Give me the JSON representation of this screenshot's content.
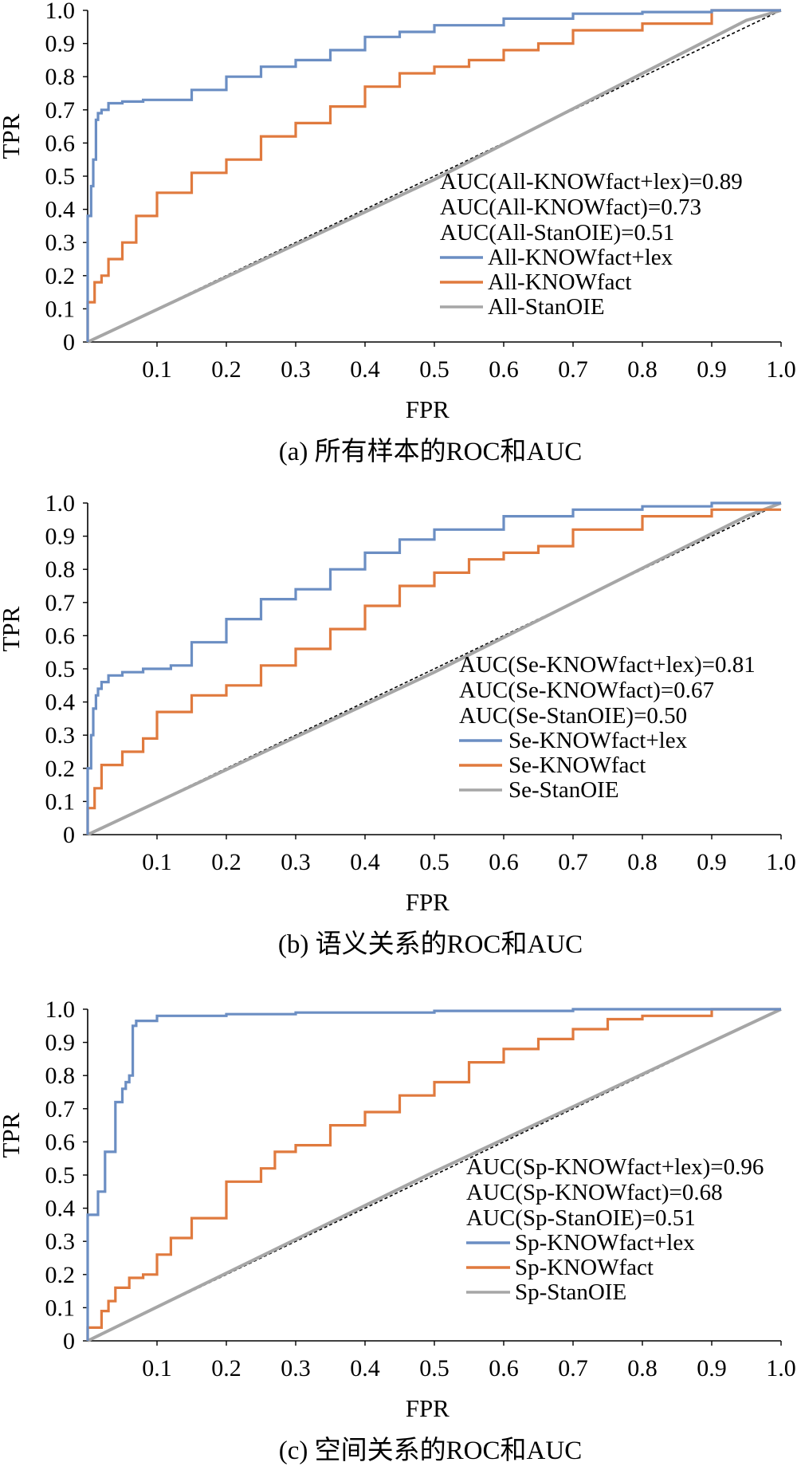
{
  "chart_data": [
    {
      "type": "line",
      "caption": "(a) 所有样本的ROC和AUC",
      "xlabel": "FPR",
      "ylabel": "TPR",
      "xlim": [
        0,
        1
      ],
      "ylim": [
        0,
        1
      ],
      "x_ticks": [
        "0.1",
        "0.2",
        "0.3",
        "0.4",
        "0.5",
        "0.6",
        "0.7",
        "0.8",
        "0.9",
        "1.0"
      ],
      "y_ticks": [
        "0",
        "0.1",
        "0.2",
        "0.3",
        "0.4",
        "0.5",
        "0.6",
        "0.7",
        "0.8",
        "0.9",
        "1.0"
      ],
      "grid": false,
      "legend_position": "right",
      "annotations": [
        "AUC(All-KNOWfact+lex)=0.89",
        "AUC(All-KNOWfact)=0.73",
        "AUC(All-StanOIE)=0.51"
      ],
      "diagonal": true,
      "series": [
        {
          "name": "All-KNOWfact+lex",
          "color": "#6b8ec3",
          "x": [
            0,
            0.005,
            0.008,
            0.012,
            0.015,
            0.02,
            0.03,
            0.05,
            0.08,
            0.15,
            0.2,
            0.25,
            0.3,
            0.35,
            0.4,
            0.45,
            0.5,
            0.6,
            0.7,
            0.8,
            0.9,
            1.0
          ],
          "y": [
            0,
            0.38,
            0.47,
            0.55,
            0.67,
            0.69,
            0.7,
            0.72,
            0.725,
            0.73,
            0.76,
            0.8,
            0.83,
            0.85,
            0.88,
            0.92,
            0.935,
            0.955,
            0.975,
            0.99,
            0.995,
            1.0
          ]
        },
        {
          "name": "All-KNOWfact",
          "color": "#e07a3e",
          "x": [
            0,
            0.01,
            0.02,
            0.03,
            0.05,
            0.07,
            0.1,
            0.15,
            0.2,
            0.25,
            0.3,
            0.35,
            0.4,
            0.45,
            0.5,
            0.55,
            0.6,
            0.65,
            0.7,
            0.8,
            0.9,
            1.0
          ],
          "y": [
            0,
            0.12,
            0.18,
            0.2,
            0.25,
            0.3,
            0.38,
            0.45,
            0.51,
            0.55,
            0.62,
            0.66,
            0.71,
            0.77,
            0.81,
            0.83,
            0.85,
            0.88,
            0.9,
            0.94,
            0.96,
            1.0
          ]
        },
        {
          "name": "All-StanOIE",
          "color": "#a6a6a6",
          "x": [
            0,
            0.5,
            0.95,
            1.0
          ],
          "y": [
            0,
            0.49,
            0.97,
            1.0
          ]
        }
      ]
    },
    {
      "type": "line",
      "caption": "(b) 语义关系的ROC和AUC",
      "xlabel": "FPR",
      "ylabel": "TPR",
      "xlim": [
        0,
        1
      ],
      "ylim": [
        0,
        1
      ],
      "x_ticks": [
        "0.1",
        "0.2",
        "0.3",
        "0.4",
        "0.5",
        "0.6",
        "0.7",
        "0.8",
        "0.9",
        "1.0"
      ],
      "y_ticks": [
        "0",
        "0.1",
        "0.2",
        "0.3",
        "0.4",
        "0.5",
        "0.6",
        "0.7",
        "0.8",
        "0.9",
        "1.0"
      ],
      "grid": false,
      "legend_position": "right",
      "annotations": [
        "AUC(Se-KNOWfact+lex)=0.81",
        "AUC(Se-KNOWfact)=0.67",
        "AUC(Se-StanOIE)=0.50"
      ],
      "diagonal": true,
      "series": [
        {
          "name": "Se-KNOWfact+lex",
          "color": "#6b8ec3",
          "x": [
            0,
            0.005,
            0.008,
            0.012,
            0.015,
            0.02,
            0.03,
            0.05,
            0.08,
            0.12,
            0.15,
            0.2,
            0.25,
            0.3,
            0.35,
            0.4,
            0.45,
            0.5,
            0.6,
            0.7,
            0.8,
            0.9,
            1.0
          ],
          "y": [
            0,
            0.2,
            0.3,
            0.38,
            0.42,
            0.44,
            0.46,
            0.48,
            0.49,
            0.5,
            0.51,
            0.58,
            0.65,
            0.71,
            0.74,
            0.8,
            0.85,
            0.89,
            0.92,
            0.96,
            0.98,
            0.99,
            1.0
          ]
        },
        {
          "name": "Se-KNOWfact",
          "color": "#e07a3e",
          "x": [
            0,
            0.01,
            0.02,
            0.05,
            0.08,
            0.1,
            0.15,
            0.2,
            0.25,
            0.3,
            0.35,
            0.4,
            0.45,
            0.5,
            0.55,
            0.6,
            0.65,
            0.7,
            0.8,
            0.9,
            1.0
          ],
          "y": [
            0,
            0.08,
            0.14,
            0.21,
            0.25,
            0.29,
            0.37,
            0.42,
            0.45,
            0.51,
            0.56,
            0.62,
            0.69,
            0.75,
            0.79,
            0.83,
            0.85,
            0.87,
            0.92,
            0.96,
            0.98
          ]
        },
        {
          "name": "Se-StanOIE",
          "color": "#a6a6a6",
          "x": [
            0,
            0.5,
            0.95,
            1.0
          ],
          "y": [
            0,
            0.49,
            0.96,
            1.0
          ]
        }
      ]
    },
    {
      "type": "line",
      "caption": "(c) 空间关系的ROC和AUC",
      "xlabel": "FPR",
      "ylabel": "TPR",
      "xlim": [
        0,
        1
      ],
      "ylim": [
        0,
        1
      ],
      "x_ticks": [
        "0.1",
        "0.2",
        "0.3",
        "0.4",
        "0.5",
        "0.6",
        "0.7",
        "0.8",
        "0.9",
        "1.0"
      ],
      "y_ticks": [
        "0",
        "0.1",
        "0.2",
        "0.3",
        "0.4",
        "0.5",
        "0.6",
        "0.7",
        "0.8",
        "0.9",
        "1.0"
      ],
      "grid": false,
      "legend_position": "right",
      "annotations": [
        "AUC(Sp-KNOWfact+lex)=0.96",
        "AUC(Sp-KNOWfact)=0.68",
        "AUC(Sp-StanOIE)=0.51"
      ],
      "diagonal": true,
      "series": [
        {
          "name": "Sp-KNOWfact+lex",
          "color": "#6b8ec3",
          "x": [
            0,
            0.015,
            0.02,
            0.025,
            0.03,
            0.04,
            0.05,
            0.055,
            0.06,
            0.065,
            0.07,
            0.1,
            0.2,
            0.3,
            0.5,
            0.7,
            1.0
          ],
          "y": [
            0,
            0.38,
            0.45,
            0.45,
            0.57,
            0.57,
            0.72,
            0.76,
            0.78,
            0.8,
            0.95,
            0.965,
            0.98,
            0.985,
            0.99,
            0.995,
            1.0
          ]
        },
        {
          "name": "Sp-KNOWfact",
          "color": "#e07a3e",
          "x": [
            0,
            0.02,
            0.03,
            0.04,
            0.06,
            0.08,
            0.1,
            0.12,
            0.15,
            0.2,
            0.25,
            0.27,
            0.3,
            0.35,
            0.4,
            0.45,
            0.5,
            0.55,
            0.6,
            0.65,
            0.7,
            0.75,
            0.8,
            0.9,
            1.0
          ],
          "y": [
            0,
            0.04,
            0.09,
            0.12,
            0.16,
            0.19,
            0.2,
            0.26,
            0.31,
            0.37,
            0.48,
            0.52,
            0.57,
            0.59,
            0.65,
            0.69,
            0.74,
            0.78,
            0.84,
            0.88,
            0.91,
            0.94,
            0.97,
            0.98,
            1.0
          ]
        },
        {
          "name": "Sp-StanOIE",
          "color": "#a6a6a6",
          "x": [
            0,
            0.5,
            1.0
          ],
          "y": [
            0,
            0.51,
            1.0
          ]
        }
      ]
    }
  ]
}
